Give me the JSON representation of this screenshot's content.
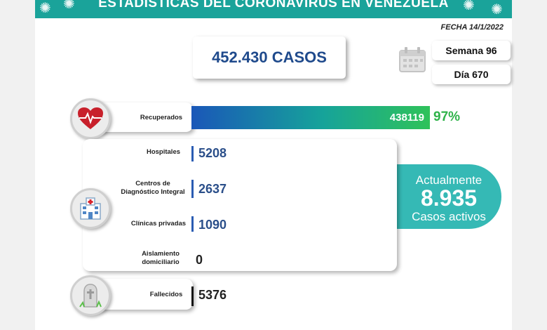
{
  "header": {
    "title": "ESTADÍSTICAS DEL CORONAVIRUS EN VENEZUELA",
    "fecha": "FECHA 14/1/2022"
  },
  "total": {
    "label": "452.430 CASOS"
  },
  "semana": "Semana 96",
  "dia": "Día 670",
  "recuperados": {
    "label": "Recuperados",
    "value": "438119",
    "percent": "97%",
    "fraction": 0.97
  },
  "hospitales": {
    "label": "Hospitales",
    "value": "5208"
  },
  "cdi": {
    "label_line1": "Centros de",
    "label_line2": "Diagnóstico Integral",
    "value": "2637"
  },
  "clinicas": {
    "label": "Clínicas privadas",
    "value": "1090"
  },
  "aislamiento": {
    "label_line1": "Aislamiento",
    "label_line2": "domiciliario",
    "value": "0"
  },
  "fallecidos": {
    "label": "Fallecidos",
    "value": "5376"
  },
  "activos": {
    "line1": "Actualmente",
    "value": "8.935",
    "line3": "Casos activos"
  },
  "colors": {
    "teal": "#1aa39a",
    "navy": "#1f4a8c",
    "green": "#2fb34a",
    "active": "#35b9b5"
  },
  "icons": [
    "virus-icon",
    "calendar-icon",
    "heart-icon",
    "hospital-icon",
    "gravestone-icon"
  ]
}
